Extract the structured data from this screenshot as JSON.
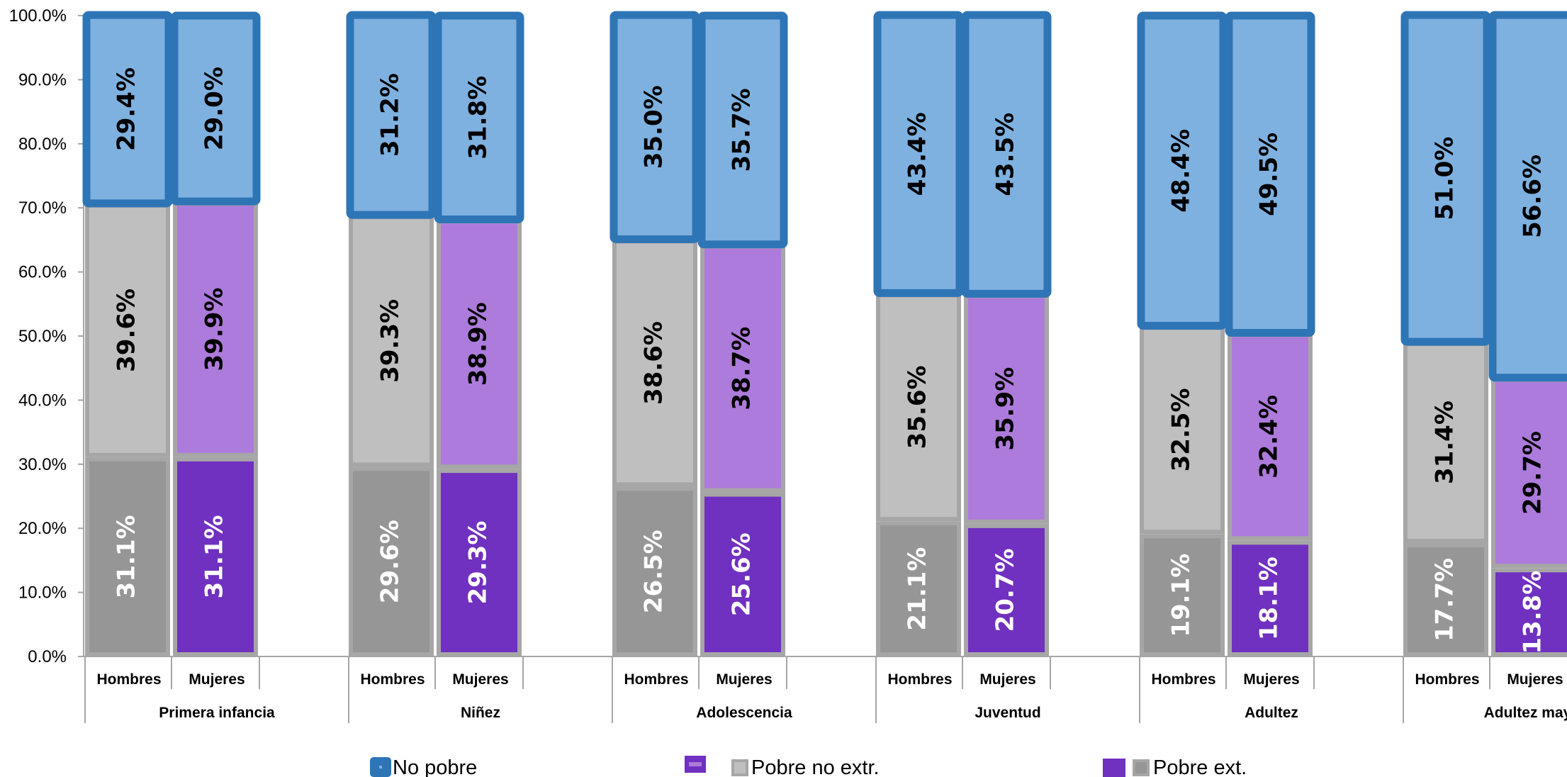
{
  "chart_data": {
    "type": "bar",
    "stacked": true,
    "ylim": [
      0,
      100
    ],
    "y_ticks": [
      "0.0%",
      "10.0%",
      "20.0%",
      "30.0%",
      "40.0%",
      "50.0%",
      "60.0%",
      "70.0%",
      "80.0%",
      "90.0%",
      "100.0%"
    ],
    "groups": [
      {
        "name": "Primera infancia",
        "bars": [
          {
            "category": "Hombres",
            "values": [
              31.1,
              39.6,
              29.4
            ],
            "labels": [
              "31.1%",
              "39.6%",
              "29.4%"
            ]
          },
          {
            "category": "Mujeres",
            "values": [
              31.1,
              39.9,
              29.0
            ],
            "labels": [
              "31.1%",
              "39.9%",
              "29.0%"
            ]
          }
        ]
      },
      {
        "name": "Niñez",
        "bars": [
          {
            "category": "Hombres",
            "values": [
              29.6,
              39.3,
              31.2
            ],
            "labels": [
              "29.6%",
              "39.3%",
              "31.2%"
            ]
          },
          {
            "category": "Mujeres",
            "values": [
              29.3,
              38.9,
              31.8
            ],
            "labels": [
              "29.3%",
              "38.9%",
              "31.8%"
            ]
          }
        ]
      },
      {
        "name": "Adolescencia",
        "bars": [
          {
            "category": "Hombres",
            "values": [
              26.5,
              38.6,
              35.0
            ],
            "labels": [
              "26.5%",
              "38.6%",
              "35.0%"
            ]
          },
          {
            "category": "Mujeres",
            "values": [
              25.6,
              38.7,
              35.7
            ],
            "labels": [
              "25.6%",
              "38.7%",
              "35.7%"
            ]
          }
        ]
      },
      {
        "name": "Juventud",
        "bars": [
          {
            "category": "Hombres",
            "values": [
              21.1,
              35.6,
              43.4
            ],
            "labels": [
              "21.1%",
              "35.6%",
              "43.4%"
            ]
          },
          {
            "category": "Mujeres",
            "values": [
              20.7,
              35.9,
              43.5
            ],
            "labels": [
              "20.7%",
              "35.9%",
              "43.5%"
            ]
          }
        ]
      },
      {
        "name": "Adultez",
        "bars": [
          {
            "category": "Hombres",
            "values": [
              19.1,
              32.5,
              48.4
            ],
            "labels": [
              "19.1%",
              "32.5%",
              "48.4%"
            ]
          },
          {
            "category": "Mujeres",
            "values": [
              18.1,
              32.4,
              49.5
            ],
            "labels": [
              "18.1%",
              "32.4%",
              "49.5%"
            ]
          }
        ]
      },
      {
        "name": "Adultez mayor",
        "bars": [
          {
            "category": "Hombres",
            "values": [
              17.7,
              31.4,
              51.0
            ],
            "labels": [
              "17.7%",
              "31.4%",
              "51.0%"
            ]
          },
          {
            "category": "Mujeres",
            "values": [
              13.8,
              29.7,
              56.6
            ],
            "labels": [
              "13.8%",
              "29.7%",
              "56.6%"
            ]
          }
        ]
      }
    ],
    "series": [
      {
        "name": "Pobre ext.",
        "colors": {
          "Hombres": "#969696",
          "Mujeres": "#7030c0"
        },
        "label_color": "#ffffff"
      },
      {
        "name": "Pobre no extr.",
        "colors": {
          "Hombres": "#bfbfbf",
          "Mujeres": "#ad7bdb"
        },
        "label_color": "#000000"
      },
      {
        "name": "No pobre",
        "colors": {
          "Hombres": "#7eb1e0",
          "Mujeres": "#7eb1e0"
        },
        "border": "#2e75b6",
        "label_color": "#000000"
      }
    ],
    "legend": {
      "placement": "bottom",
      "entries": [
        {
          "label": "No pobre",
          "icons": [
            "no-pobre-swatch-icon"
          ]
        },
        {
          "label": "Pobre no extr.",
          "icons": [
            "purple-light-swatch-icon",
            "gray-light-swatch-icon"
          ]
        },
        {
          "label": "Pobre ext.",
          "icons": [
            "purple-dark-swatch-icon",
            "gray-dark-swatch-icon"
          ]
        }
      ]
    },
    "grid": false
  }
}
